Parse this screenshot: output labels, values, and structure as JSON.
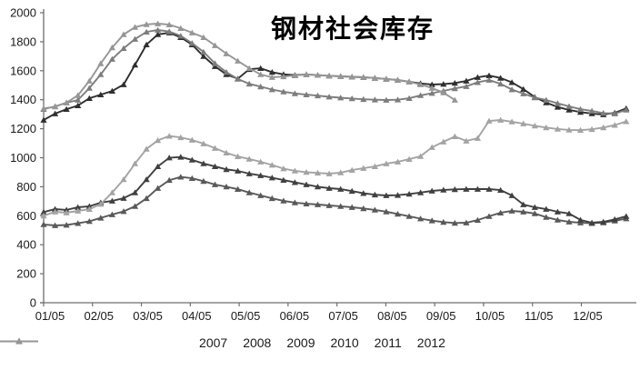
{
  "title": "钢材社会库存",
  "axes": {
    "y_tick_labels": [
      "0",
      "200",
      "400",
      "600",
      "800",
      "1000",
      "1200",
      "1400",
      "1600",
      "1800",
      "2000"
    ],
    "x_tick_labels": [
      "01/05",
      "02/05",
      "03/05",
      "04/05",
      "05/05",
      "06/05",
      "07/05",
      "08/05",
      "09/05",
      "10/05",
      "11/05",
      "12/05"
    ]
  },
  "legend": {
    "position": "bottom",
    "entries": [
      "2007",
      "2008",
      "2009",
      "2010",
      "2011",
      "2012"
    ]
  },
  "chart_data": {
    "type": "line",
    "title": "钢材社会库存",
    "xlabel": "",
    "ylabel": "",
    "ylim": [
      0,
      2000
    ],
    "ytick_step": 200,
    "grid": false,
    "marker": "triangle",
    "x_tick_labels": [
      "01/05",
      "02/05",
      "03/05",
      "04/05",
      "05/05",
      "06/05",
      "07/05",
      "08/05",
      "09/05",
      "10/05",
      "11/05",
      "12/05"
    ],
    "x_sampling": "weekly points from early January; values in same units as y axis",
    "legend_position": "bottom",
    "series": [
      {
        "name": "2007",
        "color": "#595959",
        "values": [
          540,
          533,
          536,
          548,
          562,
          585,
          608,
          630,
          665,
          720,
          790,
          845,
          868,
          858,
          838,
          815,
          800,
          783,
          760,
          740,
          720,
          703,
          690,
          683,
          677,
          671,
          665,
          658,
          650,
          640,
          628,
          612,
          596,
          580,
          566,
          556,
          550,
          552,
          570,
          596,
          620,
          633,
          627,
          615,
          590,
          571,
          558,
          552,
          548,
          553,
          565,
          580
        ]
      },
      {
        "name": "2008",
        "color": "#404040",
        "values": [
          625,
          646,
          640,
          658,
          665,
          690,
          702,
          721,
          760,
          850,
          940,
          1000,
          1005,
          985,
          960,
          940,
          920,
          909,
          890,
          878,
          862,
          846,
          830,
          815,
          800,
          790,
          784,
          770,
          755,
          745,
          740,
          742,
          750,
          760,
          771,
          778,
          782,
          784,
          784,
          784,
          777,
          740,
          677,
          658,
          646,
          627,
          615,
          571,
          552,
          558,
          575,
          596
        ]
      },
      {
        "name": "2009",
        "color": "#a3a3a3",
        "values": [
          600,
          627,
          621,
          633,
          645,
          680,
          760,
          850,
          960,
          1060,
          1120,
          1150,
          1140,
          1122,
          1097,
          1066,
          1034,
          1009,
          991,
          972,
          950,
          925,
          910,
          900,
          895,
          890,
          897,
          915,
          928,
          940,
          959,
          972,
          990,
          1010,
          1072,
          1110,
          1147,
          1116,
          1135,
          1254,
          1260,
          1248,
          1235,
          1220,
          1208,
          1198,
          1192,
          1190,
          1196,
          1208,
          1225,
          1250
        ]
      },
      {
        "name": "2010",
        "color": "#2f2f2f",
        "values": [
          1260,
          1304,
          1335,
          1360,
          1410,
          1435,
          1460,
          1505,
          1640,
          1780,
          1850,
          1862,
          1830,
          1780,
          1700,
          1630,
          1574,
          1545,
          1610,
          1617,
          1590,
          1575,
          1570,
          1574,
          1570,
          1565,
          1562,
          1558,
          1555,
          1550,
          1543,
          1536,
          1524,
          1512,
          1505,
          1508,
          1515,
          1530,
          1555,
          1567,
          1550,
          1520,
          1473,
          1418,
          1380,
          1350,
          1330,
          1315,
          1305,
          1298,
          1310,
          1340
        ]
      },
      {
        "name": "2011",
        "color": "#7d7d7d",
        "values": [
          1335,
          1354,
          1379,
          1398,
          1480,
          1574,
          1680,
          1755,
          1818,
          1868,
          1881,
          1870,
          1840,
          1790,
          1730,
          1650,
          1590,
          1543,
          1510,
          1490,
          1470,
          1455,
          1443,
          1435,
          1428,
          1420,
          1414,
          1408,
          1403,
          1400,
          1398,
          1400,
          1410,
          1430,
          1445,
          1461,
          1478,
          1492,
          1520,
          1536,
          1510,
          1470,
          1442,
          1415,
          1398,
          1375,
          1354,
          1335,
          1323,
          1308,
          1304,
          1330
        ]
      },
      {
        "name": "2012",
        "color": "#969696",
        "values": [
          1340,
          1352,
          1380,
          1430,
          1530,
          1650,
          1760,
          1850,
          1900,
          1920,
          1925,
          1918,
          1893,
          1862,
          1830,
          1774,
          1718,
          1668,
          1617,
          1574,
          1555,
          1560,
          1567,
          1574,
          1570,
          1565,
          1562,
          1558,
          1555,
          1550,
          1543,
          1536,
          1524,
          1505,
          1480,
          1449,
          1398
        ]
      }
    ]
  }
}
